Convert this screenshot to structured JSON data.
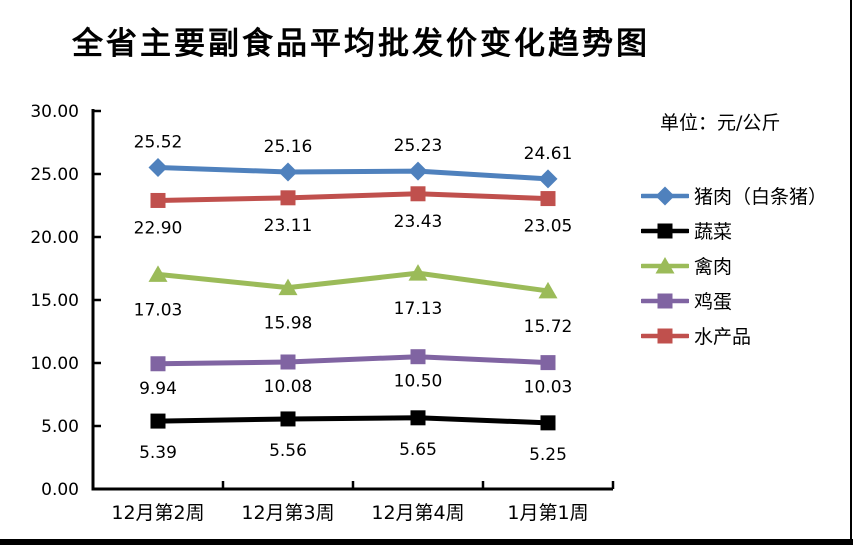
{
  "title": "全省主要副食品平均批发价变化趋势图",
  "unit_label": "单位：元/公斤",
  "chart_data": {
    "type": "line",
    "categories": [
      "12月第2周",
      "12月第3周",
      "12月第4周",
      "1月第1周"
    ],
    "series": [
      {
        "name": "猪肉（白条猪）",
        "color": "#4F81BD",
        "marker": "diamond",
        "values": [
          25.52,
          25.16,
          25.23,
          24.61
        ],
        "label_position": "above",
        "label_dy": -26
      },
      {
        "name": "蔬菜",
        "color": "#000000",
        "marker": "square",
        "values": [
          5.39,
          5.56,
          5.65,
          5.25
        ],
        "label_position": "below",
        "label_dy": 31
      },
      {
        "name": "禽肉",
        "color": "#9BBB59",
        "marker": "triangle",
        "values": [
          17.03,
          15.98,
          17.13,
          15.72
        ],
        "label_position": "below",
        "label_dy": 35
      },
      {
        "name": "鸡蛋",
        "color": "#8064A2",
        "marker": "square",
        "values": [
          9.94,
          10.08,
          10.5,
          10.03
        ],
        "label_position": "below",
        "label_dy": 24
      },
      {
        "name": "水产品",
        "color": "#C0504D",
        "marker": "square",
        "values": [
          22.9,
          23.11,
          23.43,
          23.05
        ],
        "label_position": "below",
        "label_dy": 27
      }
    ],
    "ylim": [
      0,
      30
    ],
    "y_tick_step": 5,
    "y_tick_labels": [
      "0.00",
      "5.00",
      "10.00",
      "15.00",
      "20.00",
      "25.00",
      "30.00"
    ],
    "value_decimals": 2,
    "grid": "off",
    "legend_position": "right",
    "axis_color": "#000000"
  }
}
